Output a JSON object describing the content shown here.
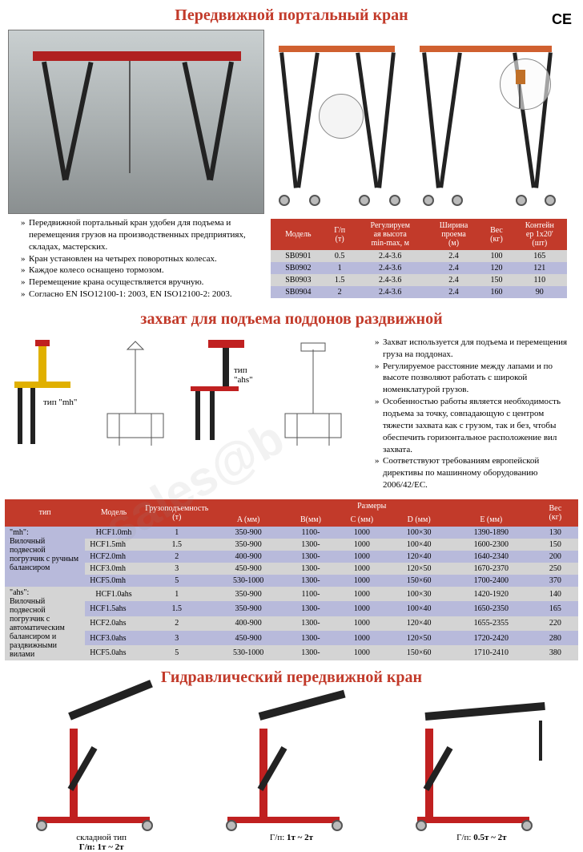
{
  "ce_mark": "CE",
  "colors": {
    "title": "#c23a2a",
    "header_bg": "#c23a2a",
    "header_text": "#ffffff",
    "row_even": "#b8badb",
    "row_odd": "#d4d4d4"
  },
  "section1": {
    "title": "Передвижной портальный кран",
    "bullets": [
      "Передвижной портальный кран удобен для подъема и перемещения грузов на производственных предприятиях, складах, мастерских.",
      "Кран установлен на четырех поворотных колесах.",
      "Каждое колесо оснащено тормозом.",
      "Перемещение крана осуществляется вручную.",
      "Согласно EN ISO12100-1: 2003, EN ISO12100-2: 2003."
    ],
    "table": {
      "headers": [
        "Модель",
        "Г/п\n(т)",
        "Регулируем\nая высота\nmin-max, м",
        "Ширина\nпроема\n(м)",
        "Вес\n(кг)",
        "Контейн\nер 1x20'\n(шт)"
      ],
      "rows": [
        [
          "SB0901",
          "0.5",
          "2.4-3.6",
          "2.4",
          "100",
          "165"
        ],
        [
          "SB0902",
          "1",
          "2.4-3.6",
          "2.4",
          "120",
          "121"
        ],
        [
          "SB0903",
          "1.5",
          "2.4-3.6",
          "2.4",
          "150",
          "110"
        ],
        [
          "SB0904",
          "2",
          "2.4-3.6",
          "2.4",
          "160",
          "90"
        ]
      ]
    }
  },
  "section2": {
    "title": "захват для подъема поддонов раздвижной",
    "label_mh": "тип \"mh\"",
    "label_ahs": "тип \"ahs\"",
    "bullets": [
      "Захват используется для подъема и перемещения груза на поддонах.",
      "Регулируемое расстояние между лапами и по высоте позволяют работать с широкой номенклатурой грузов.",
      "Особенностью работы является необходимость подъема за точку, совпадающую с центром тяжести захвата как с грузом, так и без, чтобы обеспечить горизонтальное расположение вил захвата.",
      "Соответствуют требованиям европейской директивы по машинному оборудованию 2006/42/EC."
    ],
    "table": {
      "top_headers": [
        "тип",
        "Модель",
        "Грузоподъемность\n(т)",
        "Размеры",
        "Вес\n(кг)"
      ],
      "dim_headers": [
        "A (мм)",
        "B(мм)",
        "C (мм)",
        "D (мм)",
        "E (мм)"
      ],
      "group1": {
        "label": "\"mh\":",
        "desc": "Вилочный подвесной погрузчик с ручным балансиром",
        "rows": [
          [
            "HCF1.0mh",
            "1",
            "350-900",
            "1100-",
            "1000",
            "100×30",
            "1390-1890",
            "130"
          ],
          [
            "HCF1.5mh",
            "1.5",
            "350-900",
            "1300-",
            "1000",
            "100×40",
            "1600-2300",
            "150"
          ],
          [
            "HCF2.0mh",
            "2",
            "400-900",
            "1300-",
            "1000",
            "120×40",
            "1640-2340",
            "200"
          ],
          [
            "HCF3.0mh",
            "3",
            "450-900",
            "1300-",
            "1000",
            "120×50",
            "1670-2370",
            "250"
          ],
          [
            "HCF5.0mh",
            "5",
            "530-1000",
            "1300-",
            "1000",
            "150×60",
            "1700-2400",
            "370"
          ]
        ]
      },
      "group2": {
        "label": "\"ahs\":",
        "desc": "Вилочный подвесной погрузчик с автоматическим балансиром и раздвижными вилами",
        "rows": [
          [
            "HCF1.0ahs",
            "1",
            "350-900",
            "1100-",
            "1000",
            "100×30",
            "1420-1920",
            "140"
          ],
          [
            "HCF1.5ahs",
            "1.5",
            "350-900",
            "1300-",
            "1000",
            "100×40",
            "1650-2350",
            "165"
          ],
          [
            "HCF2.0ahs",
            "2",
            "400-900",
            "1300-",
            "1000",
            "120×40",
            "1655-2355",
            "220"
          ],
          [
            "HCF3.0ahs",
            "3",
            "450-900",
            "1300-",
            "1000",
            "120×50",
            "1720-2420",
            "280"
          ],
          [
            "HCF5.0ahs",
            "5",
            "530-1000",
            "1300-",
            "1000",
            "150×60",
            "1710-2410",
            "380"
          ]
        ]
      }
    }
  },
  "section3": {
    "title": "Гидравлический передвижной кран",
    "items": [
      {
        "caption1": "складной тип",
        "caption2": "Г/п: 1т ~ 2т"
      },
      {
        "caption1": "",
        "caption2": "Г/п: 1т ~ 2т"
      },
      {
        "caption1": "",
        "caption2": "Г/п: 0.5т ~ 2т"
      }
    ]
  }
}
